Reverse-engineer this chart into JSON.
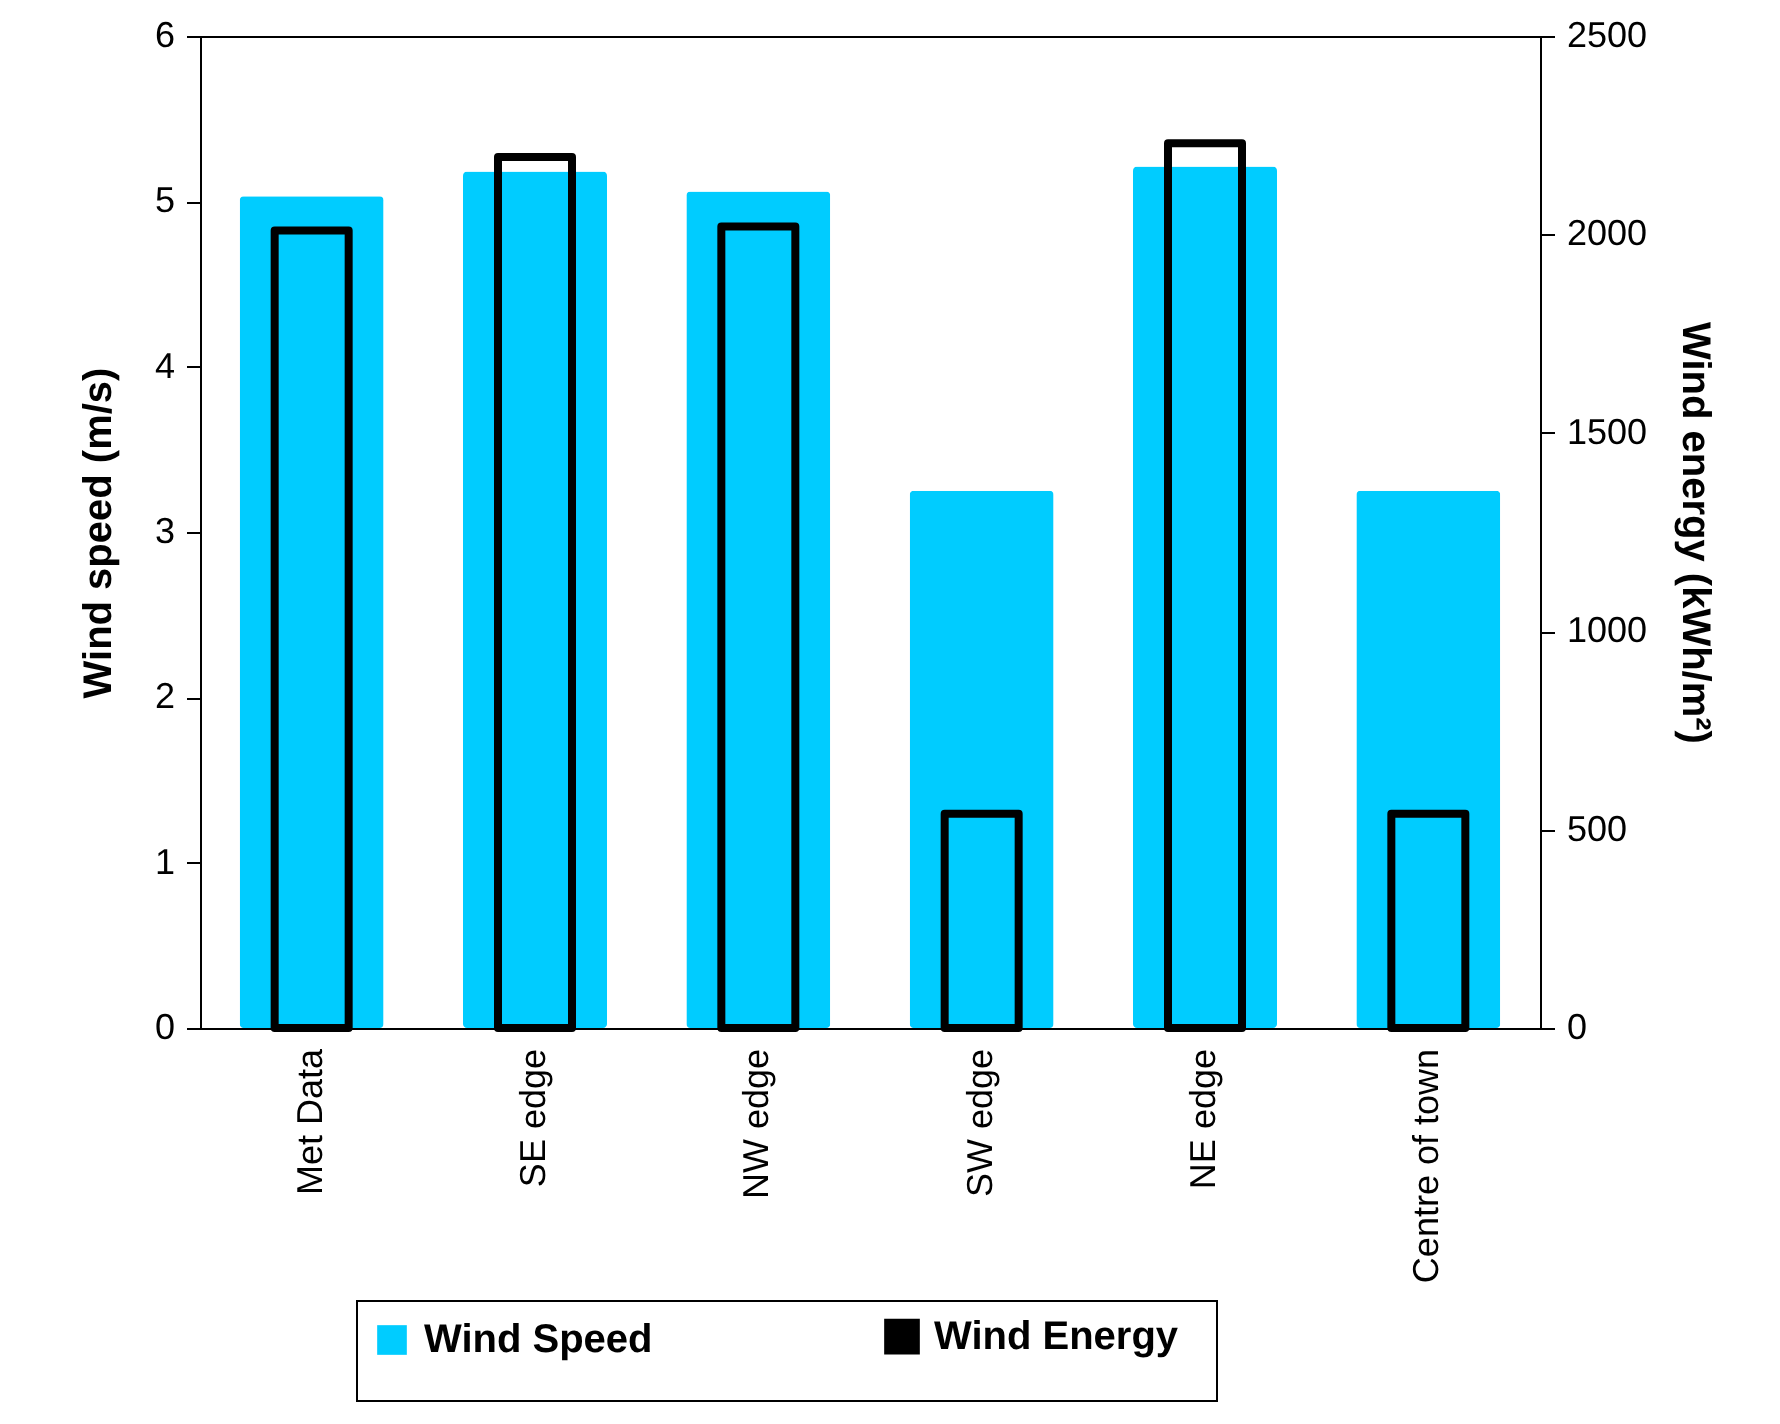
{
  "chart_data": {
    "type": "bar",
    "categories": [
      "Met Data",
      "SE edge",
      "NW edge",
      "SW edge",
      "NE edge",
      "Centre of town"
    ],
    "series": [
      {
        "name": "Wind Speed",
        "color": "#00ccff",
        "values": [
          5.03,
          5.18,
          5.06,
          3.25,
          5.21,
          3.25
        ]
      },
      {
        "name": "Wind Energy",
        "color": "#000000",
        "axis": "y2",
        "values": [
          2010,
          2195,
          2020,
          540,
          2230,
          540
        ]
      }
    ],
    "ylabel": "Wind speed (m/s)",
    "y2label": "Wind energy (kWh/m²)",
    "ylim": [
      0,
      6
    ],
    "yticks": [
      0,
      1,
      2,
      3,
      4,
      5,
      6
    ],
    "y2lim": [
      0,
      2500
    ],
    "y2ticks": [
      0,
      500,
      1000,
      1500,
      2000,
      2500
    ],
    "legend": "bottom",
    "grid": false
  }
}
